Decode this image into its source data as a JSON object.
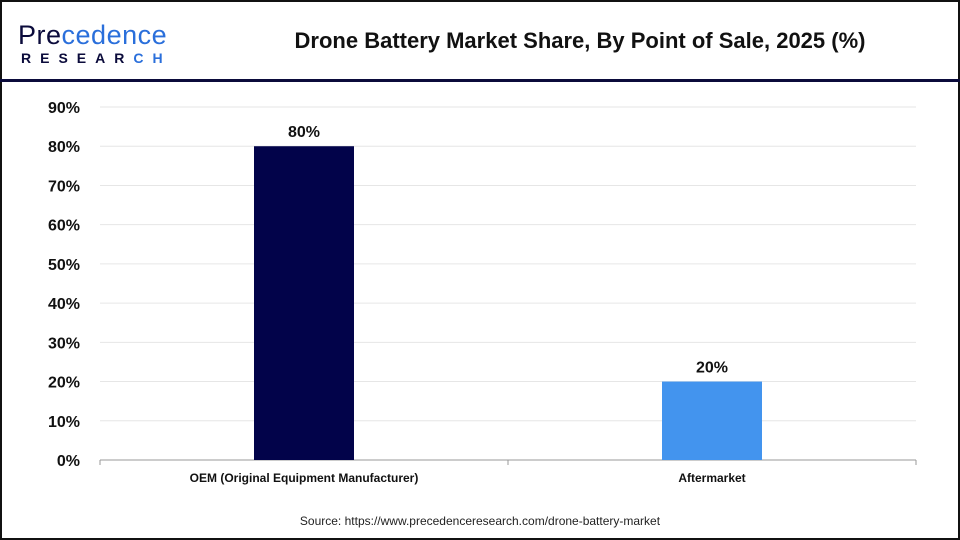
{
  "logo": {
    "text_main": "Precedence",
    "text_sub": "RESEARCH"
  },
  "title": "Drone Battery Market Share, By Point of Sale, 2025 (%)",
  "source": "Source: https://www.precedenceresearch.com/drone-battery-market",
  "chart_data": {
    "type": "bar",
    "title": "Drone Battery Market Share, By Point of Sale, 2025 (%)",
    "categories": [
      "OEM (Original Equipment Manufacturer)",
      "Aftermarket"
    ],
    "values": [
      80,
      20
    ],
    "data_labels": [
      "80%",
      "20%"
    ],
    "colors": [
      "#02034a",
      "#4394ee"
    ],
    "ylim": [
      0,
      90
    ],
    "yticks": [
      "0%",
      "10%",
      "20%",
      "30%",
      "40%",
      "50%",
      "60%",
      "70%",
      "80%",
      "90%"
    ],
    "grid": true,
    "xlabel": "",
    "ylabel": ""
  }
}
